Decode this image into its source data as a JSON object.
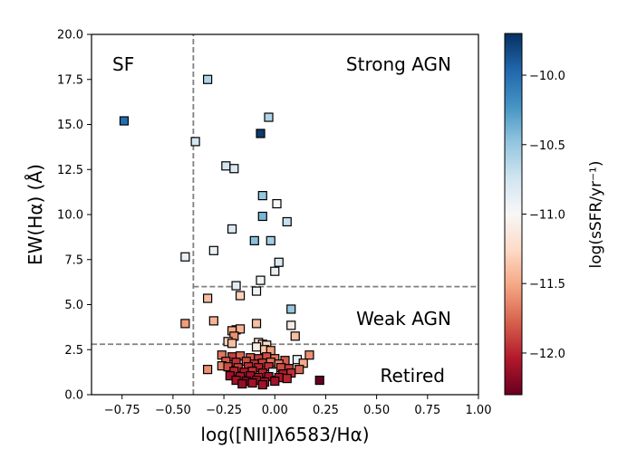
{
  "chart_data": {
    "type": "scatter",
    "xlabel": "log([NII]λ6583/Hα)",
    "ylabel": "EW(Hα) (Å)",
    "xlim": [
      -0.9,
      1.0
    ],
    "ylim": [
      0.0,
      20.0
    ],
    "xticks": [
      -0.75,
      -0.5,
      -0.25,
      0.0,
      0.25,
      0.5,
      0.75,
      1.0
    ],
    "xtick_labels": [
      "−0.75",
      "−0.50",
      "−0.25",
      "0.00",
      "0.25",
      "0.50",
      "0.75",
      "1.00"
    ],
    "yticks": [
      0.0,
      2.5,
      5.0,
      7.5,
      10.0,
      12.5,
      15.0,
      17.5,
      20.0
    ],
    "ytick_labels": [
      "0.0",
      "2.5",
      "5.0",
      "7.5",
      "10.0",
      "12.5",
      "15.0",
      "17.5",
      "20.0"
    ],
    "regions": [
      {
        "label": "SF",
        "position": "top-left"
      },
      {
        "label": "Strong AGN",
        "position": "top-right"
      },
      {
        "label": "Weak AGN",
        "position": "middle-right"
      },
      {
        "label": "Retired",
        "position": "bottom-right"
      }
    ],
    "boundaries": [
      {
        "orientation": "vertical",
        "x": -0.4,
        "y_from": 0.0,
        "y_to": 20.0
      },
      {
        "orientation": "horizontal",
        "y": 6.0,
        "x_from": -0.4,
        "x_to": 1.0
      },
      {
        "orientation": "horizontal",
        "y": 2.8,
        "x_from": -0.9,
        "x_to": 1.0
      }
    ],
    "colorbar": {
      "label": "log(sSFR/yr⁻¹)",
      "vmin": -12.3,
      "vmax": -9.7,
      "ticks": [
        -10.0,
        -10.5,
        -11.0,
        -11.5,
        -12.0
      ],
      "tick_labels": [
        "−10.0",
        "−10.5",
        "−11.0",
        "−11.5",
        "−12.0"
      ],
      "colormap": "RdBu"
    },
    "points": [
      {
        "x": -0.74,
        "y": 15.2,
        "c": -10.0
      },
      {
        "x": -0.33,
        "y": 17.5,
        "c": -10.6
      },
      {
        "x": -0.39,
        "y": 14.05,
        "c": -10.75
      },
      {
        "x": -0.07,
        "y": 14.5,
        "c": -9.75
      },
      {
        "x": -0.03,
        "y": 15.4,
        "c": -10.6
      },
      {
        "x": -0.24,
        "y": 12.7,
        "c": -10.75
      },
      {
        "x": -0.2,
        "y": 12.55,
        "c": -10.8
      },
      {
        "x": -0.06,
        "y": 11.05,
        "c": -10.5
      },
      {
        "x": 0.01,
        "y": 10.6,
        "c": -11.0
      },
      {
        "x": -0.06,
        "y": 9.9,
        "c": -10.4
      },
      {
        "x": 0.06,
        "y": 9.6,
        "c": -10.7
      },
      {
        "x": -0.21,
        "y": 9.2,
        "c": -10.8
      },
      {
        "x": -0.1,
        "y": 8.55,
        "c": -10.45
      },
      {
        "x": -0.02,
        "y": 8.55,
        "c": -10.55
      },
      {
        "x": -0.3,
        "y": 8.0,
        "c": -10.9
      },
      {
        "x": 0.02,
        "y": 7.35,
        "c": -10.8
      },
      {
        "x": -0.44,
        "y": 7.65,
        "c": -10.9
      },
      {
        "x": 0.0,
        "y": 6.85,
        "c": -10.9
      },
      {
        "x": -0.07,
        "y": 6.35,
        "c": -10.95
      },
      {
        "x": -0.19,
        "y": 6.05,
        "c": -10.85
      },
      {
        "x": -0.09,
        "y": 5.75,
        "c": -10.95
      },
      {
        "x": -0.17,
        "y": 5.5,
        "c": -11.3
      },
      {
        "x": -0.33,
        "y": 5.35,
        "c": -11.4
      },
      {
        "x": 0.08,
        "y": 4.75,
        "c": -10.5
      },
      {
        "x": -0.44,
        "y": 3.95,
        "c": -11.55
      },
      {
        "x": -0.3,
        "y": 4.1,
        "c": -11.45
      },
      {
        "x": -0.09,
        "y": 3.95,
        "c": -11.4
      },
      {
        "x": 0.08,
        "y": 3.85,
        "c": -11.1
      },
      {
        "x": -0.19,
        "y": 3.6,
        "c": -11.55
      },
      {
        "x": -0.17,
        "y": 3.65,
        "c": -11.45
      },
      {
        "x": -0.21,
        "y": 3.55,
        "c": -11.5
      },
      {
        "x": -0.2,
        "y": 3.25,
        "c": -11.6
      },
      {
        "x": 0.1,
        "y": 3.25,
        "c": -11.4
      },
      {
        "x": -0.23,
        "y": 2.95,
        "c": -11.3
      },
      {
        "x": -0.21,
        "y": 2.85,
        "c": -11.4
      },
      {
        "x": -0.08,
        "y": 2.9,
        "c": -11.2
      },
      {
        "x": -0.06,
        "y": 2.8,
        "c": -11.3
      },
      {
        "x": -0.04,
        "y": 2.75,
        "c": -11.25
      },
      {
        "x": -0.09,
        "y": 2.65,
        "c": -11.1
      },
      {
        "x": -0.05,
        "y": 2.5,
        "c": -11.35
      },
      {
        "x": -0.02,
        "y": 2.45,
        "c": -11.55
      },
      {
        "x": 0.17,
        "y": 2.2,
        "c": -11.6
      },
      {
        "x": -0.26,
        "y": 2.2,
        "c": -11.7
      },
      {
        "x": -0.21,
        "y": 2.1,
        "c": -11.9
      },
      {
        "x": -0.17,
        "y": 2.15,
        "c": -11.75
      },
      {
        "x": -0.12,
        "y": 2.05,
        "c": -11.8
      },
      {
        "x": -0.08,
        "y": 2.0,
        "c": -11.9
      },
      {
        "x": -0.04,
        "y": 2.1,
        "c": -11.85
      },
      {
        "x": 0.0,
        "y": 2.0,
        "c": -11.7
      },
      {
        "x": 0.05,
        "y": 1.9,
        "c": -11.8
      },
      {
        "x": 0.11,
        "y": 1.95,
        "c": -10.9
      },
      {
        "x": 0.14,
        "y": 1.75,
        "c": -11.5
      },
      {
        "x": -0.24,
        "y": 1.85,
        "c": -11.8
      },
      {
        "x": -0.19,
        "y": 1.8,
        "c": -11.95
      },
      {
        "x": -0.14,
        "y": 1.85,
        "c": -11.85
      },
      {
        "x": -0.1,
        "y": 1.7,
        "c": -11.95
      },
      {
        "x": -0.06,
        "y": 1.75,
        "c": -11.9
      },
      {
        "x": -0.02,
        "y": 1.8,
        "c": -11.7
      },
      {
        "x": 0.02,
        "y": 1.7,
        "c": -11.65
      },
      {
        "x": -0.26,
        "y": 1.6,
        "c": -11.65
      },
      {
        "x": -0.23,
        "y": 1.55,
        "c": -11.85
      },
      {
        "x": -0.18,
        "y": 1.5,
        "c": -11.9
      },
      {
        "x": -0.13,
        "y": 1.55,
        "c": -11.95
      },
      {
        "x": -0.08,
        "y": 1.5,
        "c": -12.0
      },
      {
        "x": -0.03,
        "y": 1.55,
        "c": -11.95
      },
      {
        "x": 0.03,
        "y": 1.5,
        "c": -11.85
      },
      {
        "x": 0.07,
        "y": 1.45,
        "c": -11.9
      },
      {
        "x": -0.33,
        "y": 1.4,
        "c": -11.6
      },
      {
        "x": 0.12,
        "y": 1.4,
        "c": -11.75
      },
      {
        "x": -0.2,
        "y": 1.3,
        "c": -12.0
      },
      {
        "x": -0.15,
        "y": 1.25,
        "c": -12.05
      },
      {
        "x": -0.11,
        "y": 1.3,
        "c": -11.95
      },
      {
        "x": -0.06,
        "y": 1.2,
        "c": -12.0
      },
      {
        "x": -0.01,
        "y": 1.25,
        "c": -10.9
      },
      {
        "x": 0.04,
        "y": 1.15,
        "c": -12.05
      },
      {
        "x": 0.08,
        "y": 1.2,
        "c": -11.95
      },
      {
        "x": -0.22,
        "y": 1.05,
        "c": -12.1
      },
      {
        "x": -0.17,
        "y": 1.0,
        "c": -12.05
      },
      {
        "x": -0.12,
        "y": 1.05,
        "c": -12.1
      },
      {
        "x": -0.08,
        "y": 0.95,
        "c": -12.0
      },
      {
        "x": -0.03,
        "y": 1.0,
        "c": -12.1
      },
      {
        "x": 0.02,
        "y": 0.95,
        "c": -12.05
      },
      {
        "x": 0.06,
        "y": 0.9,
        "c": -12.0
      },
      {
        "x": -0.19,
        "y": 0.8,
        "c": -12.1
      },
      {
        "x": -0.14,
        "y": 0.75,
        "c": -12.15
      },
      {
        "x": -0.09,
        "y": 0.8,
        "c": -12.1
      },
      {
        "x": -0.05,
        "y": 0.7,
        "c": -12.05
      },
      {
        "x": 0.0,
        "y": 0.75,
        "c": -12.1
      },
      {
        "x": -0.16,
        "y": 0.6,
        "c": -12.15
      },
      {
        "x": -0.11,
        "y": 0.65,
        "c": -12.1
      },
      {
        "x": -0.06,
        "y": 0.55,
        "c": -12.1
      },
      {
        "x": 0.22,
        "y": 0.8,
        "c": -12.3
      }
    ]
  }
}
